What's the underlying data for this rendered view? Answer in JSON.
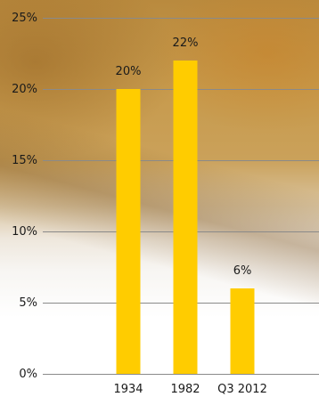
{
  "chart_data": {
    "type": "bar",
    "categories": [
      "1934",
      "1982",
      "Q3 2012"
    ],
    "values": [
      20,
      22,
      6
    ],
    "data_labels": [
      "20%",
      "22%",
      "6%"
    ],
    "ylim": [
      0,
      25
    ],
    "yticks": [
      0,
      5,
      10,
      15,
      20,
      25
    ],
    "ytick_labels": [
      "0%",
      "5%",
      "10%",
      "15%",
      "20%",
      "25%"
    ],
    "grid": true,
    "bar_color": "#ffcc00",
    "grid_color": "#8a8a8a"
  }
}
